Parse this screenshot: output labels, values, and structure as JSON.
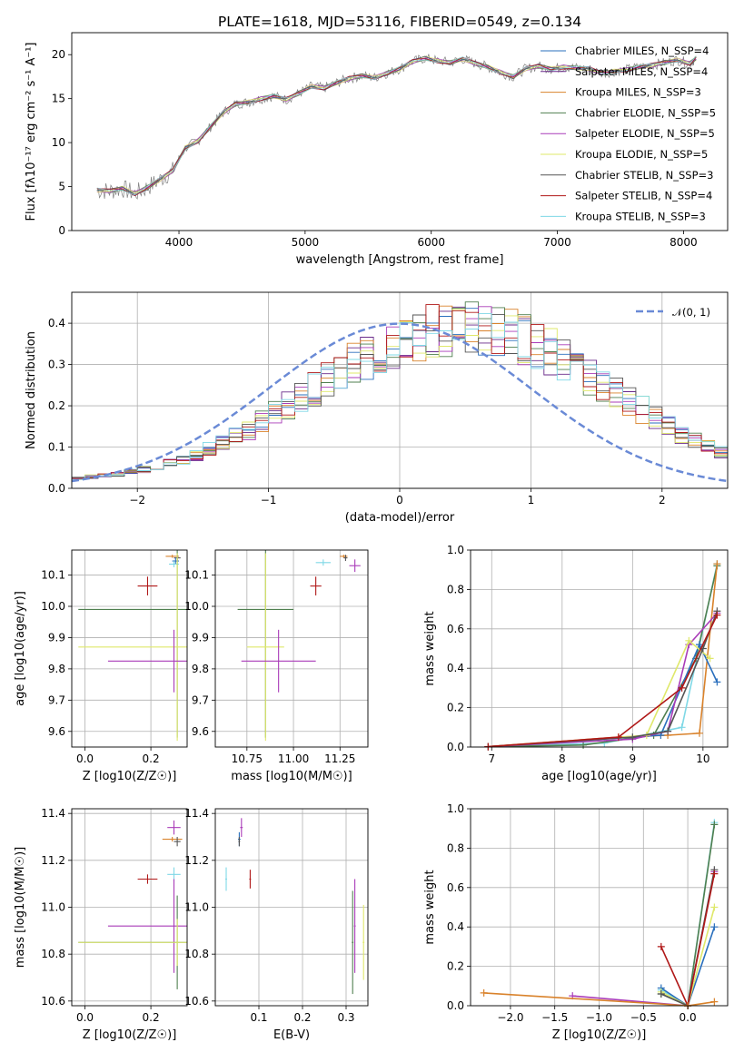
{
  "title": "PLATE=1618, MJD=53116, FIBERID=0549, z=0.134",
  "colors": {
    "chabrier_miles": "#2a6fbd",
    "salpeter_miles": "#6a2a8a",
    "kroupa_miles": "#d9822b",
    "chabrier_elodie": "#4f7f4f",
    "salpeter_elodie": "#a93bb8",
    "kroupa_elodie": "#dfe86a",
    "chabrier_stelib": "#555555",
    "salpeter_stelib": "#b01818",
    "kroupa_stelib": "#7fd8e6",
    "data": "#808080",
    "normal": "#6a8ad6"
  },
  "chart_data": [
    {
      "id": "spectrum",
      "type": "line",
      "xlabel": "wavelength [Angstrom, rest frame]",
      "ylabel": "Flux [fλ10⁻¹⁷ erg cm⁻² s⁻¹ A⁻¹]",
      "xlim": [
        3150,
        8350
      ],
      "ylim": [
        0,
        22.5
      ],
      "xticks": [
        "4000",
        "5000",
        "6000",
        "7000",
        "8000"
      ],
      "yticks": [
        "0",
        "5",
        "10",
        "15",
        "20"
      ],
      "legend_position": "right",
      "grid": false,
      "x": [
        3350,
        3450,
        3550,
        3650,
        3750,
        3850,
        3950,
        4050,
        4150,
        4250,
        4350,
        4450,
        4550,
        4650,
        4750,
        4850,
        4950,
        5050,
        5150,
        5250,
        5350,
        5450,
        5550,
        5650,
        5750,
        5850,
        5950,
        6050,
        6150,
        6250,
        6350,
        6450,
        6550,
        6650,
        6750,
        6850,
        6950,
        7050,
        7150,
        7250,
        7350,
        7450,
        7550,
        7650,
        7750,
        7850,
        7950,
        8050,
        8100
      ],
      "y": [
        4.6,
        4.5,
        4.8,
        4.2,
        4.9,
        5.8,
        6.8,
        9.4,
        10.2,
        11.8,
        13.4,
        14.4,
        14.6,
        15.0,
        15.3,
        14.9,
        15.6,
        16.4,
        16.2,
        16.8,
        17.3,
        17.6,
        17.4,
        17.9,
        18.4,
        19.2,
        19.6,
        19.3,
        19.1,
        19.5,
        19.0,
        18.6,
        18.0,
        17.5,
        18.4,
        18.7,
        18.4,
        18.6,
        18.5,
        18.4,
        17.9,
        18.1,
        18.3,
        18.6,
        18.8,
        19.1,
        19.4,
        19.0,
        19.6
      ],
      "legend": [
        "Chabrier MILES, N_SSP=4",
        "Salpeter MILES, N_SSP=4",
        "Kroupa MILES, N_SSP=3",
        "Chabrier ELODIE, N_SSP=5",
        "Salpeter ELODIE, N_SSP=5",
        "Kroupa ELODIE, N_SSP=5",
        "Chabrier STELIB, N_SSP=3",
        "Salpeter STELIB, N_SSP=4",
        "Kroupa STELIB, N_SSP=3"
      ]
    },
    {
      "id": "residuals",
      "type": "bar",
      "xlabel": "(data-model)/error",
      "ylabel": "Normed distribution",
      "xlim": [
        -2.5,
        2.5
      ],
      "ylim": [
        0,
        0.475
      ],
      "xticks": [
        "−2",
        "−1",
        "0",
        "1",
        "2"
      ],
      "yticks": [
        "0.0",
        "0.1",
        "0.2",
        "0.3",
        "0.4"
      ],
      "grid": true,
      "legend_position": "top-right",
      "normal_label": "𝒩(0, 1)",
      "bin_width": 0.1,
      "bin_start": -2.5,
      "base": [
        0.025,
        0.028,
        0.03,
        0.035,
        0.04,
        0.045,
        0.052,
        0.06,
        0.07,
        0.08,
        0.095,
        0.11,
        0.125,
        0.14,
        0.16,
        0.18,
        0.2,
        0.22,
        0.24,
        0.26,
        0.28,
        0.3,
        0.315,
        0.33,
        0.345,
        0.36,
        0.37,
        0.38,
        0.385,
        0.39,
        0.39,
        0.385,
        0.38,
        0.37,
        0.36,
        0.345,
        0.33,
        0.31,
        0.29,
        0.27,
        0.25,
        0.23,
        0.21,
        0.19,
        0.17,
        0.15,
        0.13,
        0.115,
        0.1,
        0.088
      ]
    },
    {
      "id": "age-vs-Z",
      "type": "scatter",
      "xlabel": "Z [log10(Z/Z☉)]",
      "ylabel": "age  [log10(age/yr)]",
      "xlim": [
        -0.04,
        0.31
      ],
      "ylim": [
        9.55,
        10.18
      ],
      "xticks": [
        "0.0",
        "0.2"
      ],
      "yticks": [
        "9.6",
        "9.7",
        "9.8",
        "9.9",
        "10.0",
        "10.1"
      ],
      "grid": true,
      "points": [
        {
          "key": "kroupa_miles",
          "x": 0.265,
          "y": 10.16,
          "xe": 0.02,
          "ye": 0.005
        },
        {
          "key": "chabrier_stelib",
          "x": 0.28,
          "y": 10.155,
          "xe": 0.01,
          "ye": 0.01
        },
        {
          "key": "chabrier_miles",
          "x": 0.275,
          "y": 10.145,
          "xe": 0.01,
          "ye": 0.01
        },
        {
          "key": "kroupa_stelib",
          "x": 0.27,
          "y": 10.135,
          "xe": 0.015,
          "ye": 0.01
        },
        {
          "key": "salpeter_stelib",
          "x": 0.19,
          "y": 10.065,
          "xe": 0.03,
          "ye": 0.03
        },
        {
          "key": "chabrier_elodie",
          "x": 0.28,
          "y": 9.99,
          "xe": 0.3,
          "ye": 0.41
        },
        {
          "key": "kroupa_elodie",
          "x": 0.28,
          "y": 9.87,
          "xe": 0.3,
          "ye": 0.3
        },
        {
          "key": "salpeter_elodie",
          "x": 0.27,
          "y": 9.825,
          "xe": 0.2,
          "ye": 0.1
        }
      ]
    },
    {
      "id": "age-vs-mass",
      "type": "scatter",
      "xlabel": "mass [log10(M/M☉)]",
      "ylabel": "",
      "xlim": [
        10.58,
        11.4
      ],
      "ylim": [
        9.55,
        10.18
      ],
      "xticks": [
        "10.75",
        "11.00",
        "11.25"
      ],
      "yticks": [
        "9.6",
        "9.7",
        "9.8",
        "9.9",
        "10.0",
        "10.1"
      ],
      "grid": true,
      "points": [
        {
          "key": "kroupa_miles",
          "x": 11.27,
          "y": 10.16,
          "xe": 0.02,
          "ye": 0.005
        },
        {
          "key": "chabrier_stelib",
          "x": 11.28,
          "y": 10.155,
          "xe": 0.01,
          "ye": 0.01
        },
        {
          "key": "salpeter_elodie",
          "x": 11.33,
          "y": 10.13,
          "xe": 0.03,
          "ye": 0.02
        },
        {
          "key": "kroupa_stelib",
          "x": 11.16,
          "y": 10.14,
          "xe": 0.04,
          "ye": 0.01
        },
        {
          "key": "salpeter_stelib",
          "x": 11.12,
          "y": 10.065,
          "xe": 0.03,
          "ye": 0.03
        },
        {
          "key": "chabrier_elodie",
          "x": 10.85,
          "y": 9.99,
          "xe": 0.15,
          "ye": 0.41
        },
        {
          "key": "kroupa_elodie",
          "x": 10.85,
          "y": 9.87,
          "xe": 0.1,
          "ye": 0.3
        },
        {
          "key": "salpeter_elodie",
          "x": 10.92,
          "y": 9.825,
          "xe": 0.2,
          "ye": 0.1
        }
      ]
    },
    {
      "id": "massweight-vs-age",
      "type": "line",
      "xlabel": "age  [log10(age/yr)]",
      "ylabel": "mass weight",
      "xlim": [
        6.7,
        10.35
      ],
      "ylim": [
        0,
        1
      ],
      "xticks": [
        "7",
        "8",
        "9",
        "10"
      ],
      "yticks": [
        "0.0",
        "0.2",
        "0.4",
        "0.6",
        "0.8",
        "1.0"
      ],
      "grid": true,
      "series": [
        {
          "key": "kroupa_stelib",
          "x": [
            6.95,
            8.6,
            9.7,
            10.2
          ],
          "y": [
            0.002,
            0.02,
            0.1,
            0.93
          ]
        },
        {
          "key": "chabrier_elodie",
          "x": [
            6.95,
            8.3,
            9.3,
            9.9,
            10.2
          ],
          "y": [
            0.002,
            0.01,
            0.06,
            0.45,
            0.92
          ]
        },
        {
          "key": "kroupa_miles",
          "x": [
            6.95,
            8.8,
            9.5,
            9.95,
            10.2
          ],
          "y": [
            0.002,
            0.05,
            0.06,
            0.07,
            0.93
          ]
        },
        {
          "key": "chabrier_miles",
          "x": [
            6.95,
            9.4,
            9.95,
            10.2
          ],
          "y": [
            0.002,
            0.06,
            0.52,
            0.33
          ]
        },
        {
          "key": "salpeter_elodie",
          "x": [
            6.95,
            9.0,
            9.5,
            9.8,
            10.2
          ],
          "y": [
            0.002,
            0.04,
            0.08,
            0.52,
            0.68
          ]
        },
        {
          "key": "kroupa_elodie",
          "x": [
            6.95,
            9.2,
            9.8,
            10.1
          ],
          "y": [
            0.002,
            0.06,
            0.54,
            0.45
          ]
        },
        {
          "key": "chabrier_stelib",
          "x": [
            6.95,
            9.0,
            9.5,
            10.0,
            10.2
          ],
          "y": [
            0.002,
            0.05,
            0.08,
            0.5,
            0.69
          ]
        },
        {
          "key": "salpeter_stelib",
          "x": [
            6.95,
            8.8,
            9.7,
            10.2
          ],
          "y": [
            0.002,
            0.05,
            0.3,
            0.67
          ]
        }
      ]
    },
    {
      "id": "mass-vs-Z",
      "type": "scatter",
      "xlabel": "Z [log10(Z/Z☉)]",
      "ylabel": "mass [log10(M/M☉)]",
      "xlim": [
        -0.04,
        0.31
      ],
      "ylim": [
        10.58,
        11.42
      ],
      "xticks": [
        "0.0",
        "0.2"
      ],
      "yticks": [
        "10.6",
        "10.8",
        "11.0",
        "11.2",
        "11.4"
      ],
      "grid": true,
      "points": [
        {
          "key": "salpeter_elodie",
          "x": 0.27,
          "y": 11.34,
          "xe": 0.02,
          "ye": 0.03
        },
        {
          "key": "kroupa_miles",
          "x": 0.265,
          "y": 11.29,
          "xe": 0.03,
          "ye": 0.01
        },
        {
          "key": "chabrier_stelib",
          "x": 0.28,
          "y": 11.28,
          "xe": 0.01,
          "ye": 0.02
        },
        {
          "key": "kroupa_stelib",
          "x": 0.27,
          "y": 11.14,
          "xe": 0.02,
          "ye": 0.03
        },
        {
          "key": "salpeter_stelib",
          "x": 0.19,
          "y": 11.12,
          "xe": 0.03,
          "ye": 0.02
        },
        {
          "key": "salpeter_elodie",
          "x": 0.27,
          "y": 10.92,
          "xe": 0.2,
          "ye": 0.2
        },
        {
          "key": "chabrier_elodie",
          "x": 0.28,
          "y": 10.85,
          "xe": 0.3,
          "ye": 0.2
        },
        {
          "key": "kroupa_elodie",
          "x": 0.28,
          "y": 10.85,
          "xe": 0.3,
          "ye": 0.1
        }
      ]
    },
    {
      "id": "mass-vs-ebv",
      "type": "scatter",
      "xlabel": "E(B-V)",
      "ylabel": "",
      "xlim": [
        0.0,
        0.35
      ],
      "ylim": [
        10.58,
        11.42
      ],
      "xticks": [
        "0.1",
        "0.2",
        "0.3"
      ],
      "yticks": [
        "10.6",
        "10.8",
        "11.0",
        "11.2",
        "11.4"
      ],
      "grid": true,
      "points": [
        {
          "key": "salpeter_elodie",
          "x": 0.06,
          "y": 11.34,
          "xe": 0.003,
          "ye": 0.04
        },
        {
          "key": "chabrier_miles",
          "x": 0.055,
          "y": 11.29,
          "xe": 0.003,
          "ye": 0.03
        },
        {
          "key": "chabrier_stelib",
          "x": 0.055,
          "y": 11.28,
          "xe": 0.002,
          "ye": 0.02
        },
        {
          "key": "kroupa_stelib",
          "x": 0.025,
          "y": 11.12,
          "xe": 0.002,
          "ye": 0.05
        },
        {
          "key": "salpeter_stelib",
          "x": 0.08,
          "y": 11.12,
          "xe": 0.002,
          "ye": 0.04
        },
        {
          "key": "salpeter_elodie",
          "x": 0.32,
          "y": 10.92,
          "xe": 0.002,
          "ye": 0.2
        },
        {
          "key": "chabrier_elodie",
          "x": 0.315,
          "y": 10.85,
          "xe": 0.002,
          "ye": 0.22
        },
        {
          "key": "kroupa_elodie",
          "x": 0.34,
          "y": 10.85,
          "xe": 0.002,
          "ye": 0.16
        }
      ]
    },
    {
      "id": "massweight-vs-Z",
      "type": "line",
      "xlabel": "Z [log10(Z/Z☉)]",
      "ylabel": "mass weight",
      "xlim": [
        -2.45,
        0.45
      ],
      "ylim": [
        0,
        1
      ],
      "xticks": [
        "−2.0",
        "−1.5",
        "−1.0",
        "−0.5",
        "0.0"
      ],
      "yticks": [
        "0.0",
        "0.2",
        "0.4",
        "0.6",
        "0.8",
        "1.0"
      ],
      "grid": true,
      "series": [
        {
          "key": "kroupa_stelib",
          "x": [
            -0.3,
            0.0,
            0.3
          ],
          "y": [
            0.08,
            0.0,
            0.93
          ]
        },
        {
          "key": "chabrier_elodie",
          "x": [
            -0.3,
            0.0,
            0.3
          ],
          "y": [
            0.06,
            0.0,
            0.92
          ]
        },
        {
          "key": "chabrier_miles",
          "x": [
            -0.3,
            0.0,
            0.3
          ],
          "y": [
            0.09,
            0.0,
            0.4
          ]
        },
        {
          "key": "salpeter_elodie",
          "x": [
            -1.3,
            0.0,
            0.3
          ],
          "y": [
            0.05,
            0.0,
            0.68
          ]
        },
        {
          "key": "kroupa_elodie",
          "x": [
            -0.3,
            0.0,
            0.3
          ],
          "y": [
            0.07,
            0.0,
            0.5
          ]
        },
        {
          "key": "chabrier_stelib",
          "x": [
            -0.3,
            0.0,
            0.3
          ],
          "y": [
            0.06,
            0.0,
            0.69
          ]
        },
        {
          "key": "salpeter_stelib",
          "x": [
            -0.3,
            0.0,
            0.3
          ],
          "y": [
            0.3,
            0.0,
            0.67
          ]
        },
        {
          "key": "kroupa_miles",
          "x": [
            -2.3,
            0.0,
            0.3
          ],
          "y": [
            0.065,
            0.0,
            0.02
          ]
        }
      ]
    }
  ]
}
